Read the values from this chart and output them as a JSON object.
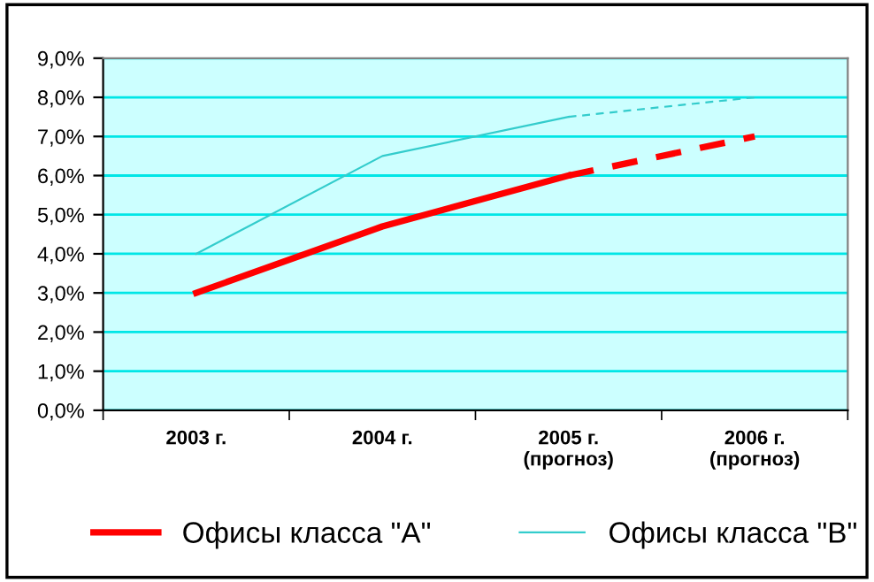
{
  "chart_data": {
    "type": "line",
    "categories": [
      "2003 г.",
      "2004 г.",
      "2005 г.\n(прогноз)",
      "2006 г.\n(прогноз)"
    ],
    "series": [
      {
        "name": "Офисы класса \"A\"",
        "color": "#ff0000",
        "values": [
          3.0,
          4.7,
          6.0,
          null
        ],
        "line_style": "solid"
      },
      {
        "color": "#ff0000",
        "values": [
          null,
          null,
          6.0,
          7.0
        ],
        "line_style": "dashed"
      },
      {
        "name": "Офисы класса \"B\"",
        "color": "#33cccc",
        "values": [
          4.0,
          6.5,
          7.5,
          null
        ],
        "line_style": "solid"
      },
      {
        "color": "#33cccc",
        "values": [
          null,
          null,
          7.5,
          8.0
        ],
        "line_style": "dashed"
      }
    ],
    "ylim": [
      0,
      9
    ],
    "yticks": [
      {
        "value": 0,
        "label": "0,0%"
      },
      {
        "value": 1,
        "label": "1,0%"
      },
      {
        "value": 2,
        "label": "2,0%"
      },
      {
        "value": 3,
        "label": "3,0%"
      },
      {
        "value": 4,
        "label": "4,0%"
      },
      {
        "value": 5,
        "label": "5,0%"
      },
      {
        "value": 6,
        "label": "6,0%"
      },
      {
        "value": 7,
        "label": "7,0%"
      },
      {
        "value": 8,
        "label": "8,0%"
      },
      {
        "value": 9,
        "label": "9,0%"
      }
    ],
    "grid": "y",
    "legend": "bottom",
    "marker": "none"
  }
}
